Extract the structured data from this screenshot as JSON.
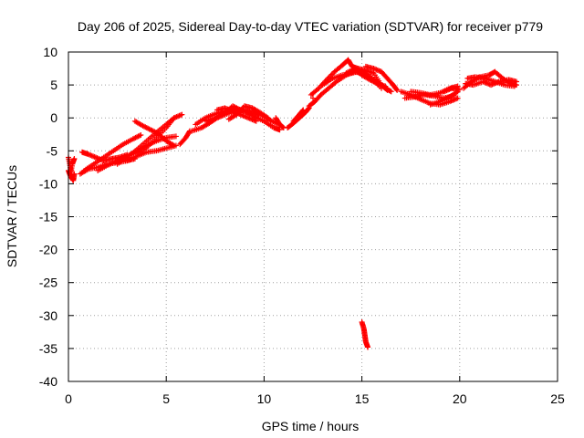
{
  "chart_data": {
    "type": "scatter",
    "title": "Day 206 of 2025, Sidereal Day-to-day VTEC variation (SDTVAR) for receiver p779",
    "xlabel": "GPS time / hours",
    "ylabel": "SDTVAR / TECUs",
    "xlim": [
      0,
      25
    ],
    "ylim": [
      -40,
      10
    ],
    "xticks": [
      0,
      5,
      10,
      15,
      20,
      25
    ],
    "yticks": [
      -40,
      -35,
      -30,
      -25,
      -20,
      -15,
      -10,
      -5,
      0,
      5,
      10
    ],
    "grid": true,
    "marker": "+",
    "color": "#ff0000",
    "tracks": [
      {
        "name": "arc-01",
        "points": [
          [
            0.0,
            -6.0
          ],
          [
            0.1,
            -7.5
          ],
          [
            0.15,
            -9.0
          ],
          [
            0.25,
            -9.5
          ],
          [
            0.3,
            -8.5
          ]
        ]
      },
      {
        "name": "arc-02",
        "points": [
          [
            0.0,
            -8.0
          ],
          [
            0.1,
            -8.8
          ],
          [
            0.2,
            -7.0
          ],
          [
            0.3,
            -6.2
          ]
        ]
      },
      {
        "name": "arc-03",
        "points": [
          [
            0.6,
            -8.5
          ],
          [
            1.0,
            -7.8
          ],
          [
            1.5,
            -7.5
          ],
          [
            2.0,
            -7.0
          ],
          [
            2.5,
            -6.8
          ],
          [
            3.0,
            -6.5
          ],
          [
            3.4,
            -6.2
          ]
        ]
      },
      {
        "name": "arc-04",
        "points": [
          [
            0.7,
            -5.2
          ],
          [
            1.0,
            -5.5
          ],
          [
            1.4,
            -6.0
          ],
          [
            1.8,
            -6.5
          ],
          [
            2.2,
            -6.2
          ],
          [
            2.6,
            -6.0
          ],
          [
            3.0,
            -5.6
          ]
        ]
      },
      {
        "name": "arc-05",
        "points": [
          [
            0.8,
            -8.0
          ],
          [
            1.3,
            -7.0
          ],
          [
            1.8,
            -6.0
          ],
          [
            2.3,
            -5.0
          ],
          [
            2.8,
            -4.0
          ],
          [
            3.3,
            -3.2
          ],
          [
            3.7,
            -2.6
          ]
        ]
      },
      {
        "name": "arc-06",
        "points": [
          [
            1.5,
            -8.0
          ],
          [
            2.0,
            -7.2
          ],
          [
            2.5,
            -6.5
          ],
          [
            3.0,
            -5.8
          ],
          [
            3.5,
            -5.0
          ],
          [
            4.0,
            -4.2
          ],
          [
            4.5,
            -3.5
          ],
          [
            5.0,
            -3.0
          ],
          [
            5.5,
            -2.8
          ]
        ]
      },
      {
        "name": "arc-07",
        "points": [
          [
            2.5,
            -7.0
          ],
          [
            3.0,
            -6.0
          ],
          [
            3.5,
            -4.8
          ],
          [
            4.0,
            -3.5
          ],
          [
            4.5,
            -2.2
          ],
          [
            5.0,
            -1.0
          ],
          [
            5.4,
            0.0
          ]
        ]
      },
      {
        "name": "arc-08",
        "points": [
          [
            3.4,
            -0.5
          ],
          [
            3.8,
            -1.2
          ],
          [
            4.2,
            -1.8
          ],
          [
            4.6,
            -2.4
          ],
          [
            5.0,
            -3.5
          ],
          [
            5.4,
            -4.2
          ]
        ]
      },
      {
        "name": "arc-09",
        "points": [
          [
            3.5,
            -5.5
          ],
          [
            4.0,
            -4.5
          ],
          [
            4.5,
            -3.0
          ],
          [
            5.0,
            -1.5
          ],
          [
            5.4,
            0.0
          ],
          [
            5.8,
            0.5
          ]
        ]
      },
      {
        "name": "arc-10",
        "points": [
          [
            3.0,
            -6.5
          ],
          [
            3.5,
            -5.8
          ],
          [
            4.0,
            -5.2
          ],
          [
            4.5,
            -5.0
          ],
          [
            5.0,
            -4.6
          ],
          [
            5.5,
            -4.2
          ]
        ]
      },
      {
        "name": "arc-11",
        "points": [
          [
            5.7,
            -4.0
          ],
          [
            6.0,
            -3.0
          ],
          [
            6.2,
            -2.0
          ]
        ]
      },
      {
        "name": "arc-12",
        "points": [
          [
            6.3,
            -2.0
          ],
          [
            6.8,
            -1.5
          ],
          [
            7.2,
            -0.8
          ],
          [
            7.6,
            0.0
          ],
          [
            8.0,
            0.5
          ],
          [
            8.5,
            1.0
          ],
          [
            9.0,
            1.2
          ],
          [
            9.5,
            1.0
          ],
          [
            10.0,
            0.2
          ],
          [
            10.4,
            -0.5
          ],
          [
            10.8,
            -1.0
          ]
        ]
      },
      {
        "name": "arc-13",
        "points": [
          [
            6.5,
            -1.0
          ],
          [
            7.0,
            0.0
          ],
          [
            7.5,
            0.6
          ],
          [
            8.0,
            1.0
          ],
          [
            8.5,
            1.5
          ],
          [
            9.0,
            1.0
          ],
          [
            9.5,
            0.2
          ],
          [
            10.0,
            -0.5
          ],
          [
            10.5,
            -1.5
          ],
          [
            10.8,
            -1.8
          ]
        ]
      },
      {
        "name": "arc-14",
        "points": [
          [
            7.0,
            -0.5
          ],
          [
            7.5,
            0.0
          ],
          [
            8.0,
            0.8
          ],
          [
            8.4,
            1.8
          ],
          [
            8.8,
            1.2
          ],
          [
            9.2,
            0.8
          ],
          [
            9.7,
            0.5
          ]
        ]
      },
      {
        "name": "arc-15",
        "points": [
          [
            8.2,
            -0.2
          ],
          [
            8.6,
            0.5
          ],
          [
            9.0,
            1.8
          ],
          [
            9.4,
            1.5
          ],
          [
            9.8,
            0.8
          ],
          [
            10.2,
            0.0
          ]
        ]
      },
      {
        "name": "arc-16",
        "points": [
          [
            7.6,
            1.2
          ],
          [
            8.0,
            1.5
          ],
          [
            8.4,
            1.0
          ],
          [
            8.8,
            0.5
          ],
          [
            9.2,
            0.0
          ],
          [
            9.6,
            -0.5
          ]
        ]
      },
      {
        "name": "arc-17",
        "points": [
          [
            10.6,
            0.0
          ],
          [
            10.8,
            -1.0
          ],
          [
            11.0,
            -1.5
          ]
        ]
      },
      {
        "name": "arc-18",
        "points": [
          [
            11.2,
            -1.5
          ],
          [
            11.5,
            -0.8
          ],
          [
            11.8,
            0.0
          ],
          [
            12.1,
            0.8
          ],
          [
            12.3,
            1.5
          ]
        ]
      },
      {
        "name": "arc-19",
        "points": [
          [
            11.5,
            -0.5
          ],
          [
            11.8,
            0.5
          ],
          [
            12.0,
            1.2
          ]
        ]
      },
      {
        "name": "arc-20",
        "points": [
          [
            12.5,
            3.0
          ]
        ]
      },
      {
        "name": "arc-21",
        "points": [
          [
            12.3,
            1.8
          ],
          [
            12.6,
            2.5
          ],
          [
            12.9,
            3.5
          ],
          [
            13.3,
            4.5
          ],
          [
            13.7,
            5.5
          ],
          [
            14.2,
            6.5
          ],
          [
            14.6,
            7.0
          ],
          [
            15.0,
            6.8
          ],
          [
            15.4,
            6.2
          ],
          [
            15.8,
            5.5
          ],
          [
            16.2,
            4.5
          ],
          [
            16.5,
            4.0
          ]
        ]
      },
      {
        "name": "arc-22",
        "points": [
          [
            12.4,
            3.5
          ],
          [
            12.8,
            4.5
          ],
          [
            13.2,
            5.8
          ],
          [
            13.6,
            7.0
          ],
          [
            14.0,
            8.0
          ],
          [
            14.3,
            8.8
          ],
          [
            14.5,
            7.8
          ],
          [
            14.8,
            7.5
          ],
          [
            15.2,
            7.2
          ],
          [
            15.6,
            6.8
          ],
          [
            16.0,
            5.0
          ],
          [
            16.3,
            4.2
          ]
        ]
      },
      {
        "name": "arc-23",
        "points": [
          [
            13.0,
            5.0
          ],
          [
            13.5,
            6.0
          ],
          [
            14.0,
            6.5
          ],
          [
            14.5,
            6.8
          ],
          [
            15.0,
            7.2
          ],
          [
            15.5,
            6.0
          ],
          [
            16.0,
            4.5
          ]
        ]
      },
      {
        "name": "arc-24",
        "points": [
          [
            15.2,
            7.8
          ],
          [
            15.6,
            7.5
          ],
          [
            16.0,
            7.0
          ],
          [
            16.3,
            6.0
          ],
          [
            16.6,
            5.0
          ],
          [
            16.8,
            4.2
          ]
        ]
      },
      {
        "name": "arc-25",
        "points": [
          [
            14.2,
            6.8
          ],
          [
            14.6,
            7.4
          ],
          [
            15.0,
            6.5
          ],
          [
            15.4,
            5.8
          ],
          [
            15.8,
            5.2
          ],
          [
            16.2,
            4.8
          ]
        ]
      },
      {
        "name": "arc-26",
        "points": [
          [
            17.0,
            4.0
          ],
          [
            17.5,
            3.5
          ],
          [
            18.0,
            2.8
          ],
          [
            18.5,
            2.2
          ],
          [
            19.0,
            2.0
          ],
          [
            19.5,
            2.5
          ],
          [
            19.9,
            3.0
          ]
        ]
      },
      {
        "name": "arc-27",
        "points": [
          [
            17.2,
            3.0
          ],
          [
            17.7,
            3.2
          ],
          [
            18.2,
            3.5
          ],
          [
            18.7,
            3.3
          ],
          [
            19.2,
            3.0
          ],
          [
            19.7,
            3.4
          ]
        ]
      },
      {
        "name": "arc-28",
        "points": [
          [
            17.5,
            4.0
          ],
          [
            18.0,
            3.8
          ],
          [
            18.5,
            3.5
          ],
          [
            19.0,
            3.8
          ],
          [
            19.5,
            4.5
          ],
          [
            19.9,
            4.8
          ]
        ]
      },
      {
        "name": "arc-29",
        "points": [
          [
            18.5,
            2.0
          ],
          [
            19.0,
            2.5
          ],
          [
            19.5,
            3.2
          ],
          [
            19.9,
            4.0
          ]
        ]
      },
      {
        "name": "arc-30",
        "points": [
          [
            19.2,
            4.0
          ],
          [
            19.6,
            4.5
          ],
          [
            20.0,
            4.3
          ]
        ]
      },
      {
        "name": "arc-31",
        "points": [
          [
            20.2,
            4.5
          ],
          [
            20.6,
            5.5
          ],
          [
            21.0,
            6.2
          ],
          [
            21.5,
            6.5
          ],
          [
            21.8,
            7.0
          ],
          [
            22.2,
            6.0
          ],
          [
            22.6,
            5.2
          ],
          [
            22.9,
            5.0
          ]
        ]
      },
      {
        "name": "arc-32",
        "points": [
          [
            20.3,
            5.2
          ],
          [
            20.7,
            5.0
          ],
          [
            21.2,
            5.5
          ],
          [
            21.6,
            5.0
          ],
          [
            22.0,
            5.5
          ],
          [
            22.5,
            5.8
          ],
          [
            22.9,
            5.5
          ]
        ]
      },
      {
        "name": "arc-33",
        "points": [
          [
            20.4,
            6.0
          ],
          [
            20.8,
            6.2
          ],
          [
            21.3,
            6.0
          ],
          [
            21.8,
            5.5
          ],
          [
            22.3,
            5.0
          ],
          [
            22.8,
            4.8
          ]
        ]
      },
      {
        "name": "arc-34",
        "points": [
          [
            15.0,
            -31.0
          ],
          [
            15.1,
            -32.0
          ],
          [
            15.15,
            -33.0
          ],
          [
            15.2,
            -34.0
          ],
          [
            15.3,
            -34.8
          ]
        ]
      }
    ]
  }
}
